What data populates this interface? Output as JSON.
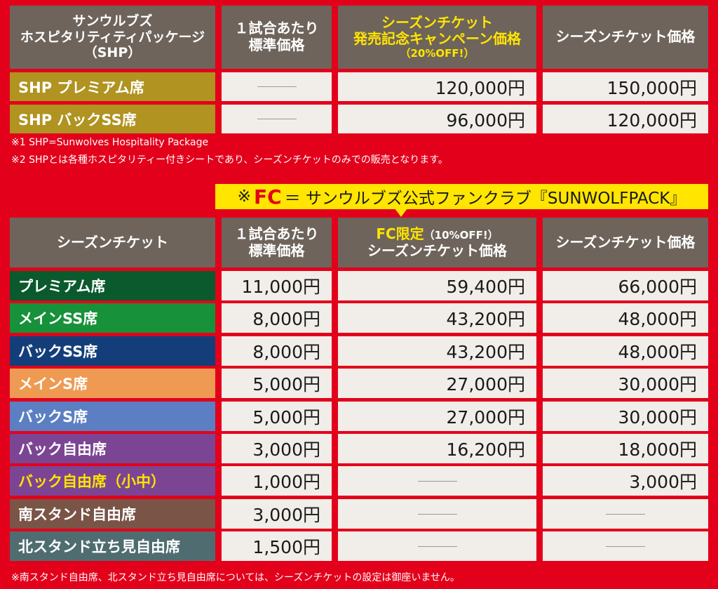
{
  "shp": {
    "headers": {
      "col1": [
        "サンウルブズ",
        "ホスピタリティティパッケージ",
        "（SHP）"
      ],
      "col2": [
        "１試合あたり",
        "標準価格"
      ],
      "col3": [
        "シーズンチケット",
        "発売記念キャンペーン価格",
        "（20%OFF!）"
      ],
      "col4": "シーズンチケット価格"
    },
    "rows": [
      {
        "label": "SHP プレミアム席",
        "standard": "",
        "campaign": "120,000円",
        "season": "150,000円"
      },
      {
        "label": "SHP バックSS席",
        "standard": "",
        "campaign": "96,000円",
        "season": "120,000円"
      }
    ],
    "notes": [
      "※1 SHP=Sunwolves Hospitality Package",
      "※2 SHPとは各種ホスピタリティー付きシートであり、シーズンチケットのみでの販売となります。"
    ]
  },
  "fc_banner": {
    "prefix": "※",
    "fc": "FC",
    "text": "＝ サンウルブズ公式ファンクラブ『SUNWOLFPACK』"
  },
  "season": {
    "headers": {
      "col1": "シーズンチケット",
      "col2": [
        "１試合あたり",
        "標準価格"
      ],
      "col3_line1": "FC限定",
      "col3_off": "（10%OFF!）",
      "col3_line2": "シーズンチケット価格",
      "col4": "シーズンチケット価格"
    },
    "rows": [
      {
        "label": "プレミアム席",
        "color": "#0b5a2e",
        "label_color": "#ffffff",
        "standard": "11,000円",
        "fc": "59,400円",
        "season": "66,000円"
      },
      {
        "label": "メインSS席",
        "color": "#17913a",
        "label_color": "#ffffff",
        "standard": "8,000円",
        "fc": "43,200円",
        "season": "48,000円"
      },
      {
        "label": "バックSS席",
        "color": "#143e7a",
        "label_color": "#ffffff",
        "standard": "8,000円",
        "fc": "43,200円",
        "season": "48,000円"
      },
      {
        "label": "メインS席",
        "color": "#ef9a52",
        "label_color": "#ffffff",
        "standard": "5,000円",
        "fc": "27,000円",
        "season": "30,000円"
      },
      {
        "label": "バックS席",
        "color": "#5b7fc2",
        "label_color": "#ffffff",
        "standard": "5,000円",
        "fc": "27,000円",
        "season": "30,000円"
      },
      {
        "label": "バック自由席",
        "color": "#7b4594",
        "label_color": "#ffffff",
        "standard": "3,000円",
        "fc": "16,200円",
        "season": "18,000円"
      },
      {
        "label": "バック自由席（小中）",
        "color": "#7b4594",
        "label_color": "#ffe500",
        "standard": "1,000円",
        "fc": "",
        "season": "3,000円"
      },
      {
        "label": "南スタンド自由席",
        "color": "#7a5447",
        "label_color": "#ffffff",
        "standard": "3,000円",
        "fc": "",
        "season": ""
      },
      {
        "label": "北スタンド立ち見自由席",
        "color": "#4f6d70",
        "label_color": "#ffffff",
        "standard": "1,500円",
        "fc": "",
        "season": ""
      }
    ],
    "note": "※南スタンド自由席、北スタンド立ち見自由席については、シーズンチケットの設定は御座いません。"
  },
  "colors": {
    "background": "#e3001b",
    "header": "#6e645b",
    "cell": "#f1ede8",
    "shp_label": "#b09320",
    "highlight": "#ffe500"
  }
}
